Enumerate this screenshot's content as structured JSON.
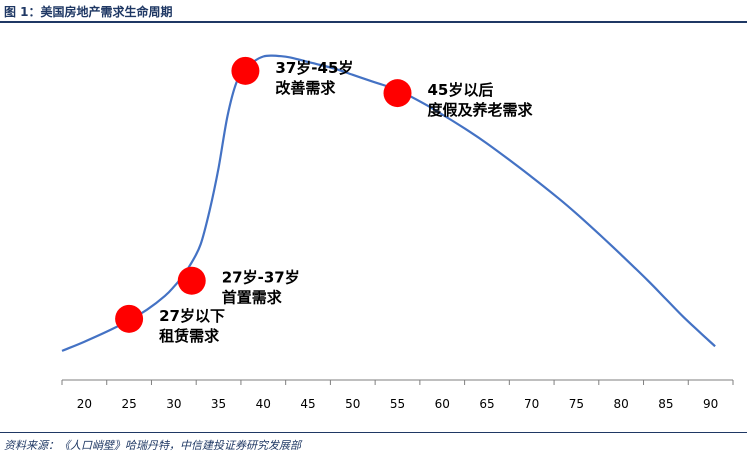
{
  "figure": {
    "title": "图 1：美国房地产需求生命周期",
    "source": "资料来源：《人口峭壁》哈瑞丹特，中信建投证券研究发展部"
  },
  "colors": {
    "curve": "#4472c4",
    "marker": "#ff0000",
    "rule": "#1f3864",
    "text": "#000000"
  },
  "chart_data": {
    "type": "line",
    "title": "",
    "xlabel": "",
    "ylabel": "",
    "xlim": [
      17.5,
      92.5
    ],
    "x_ticks": [
      20,
      25,
      30,
      35,
      40,
      45,
      50,
      55,
      60,
      65,
      70,
      75,
      80,
      85,
      90
    ],
    "ylim": [
      0,
      100
    ],
    "y_axis_shown": false,
    "grid": false,
    "series": [
      {
        "x": [
          17.5,
          20,
          23,
          25,
          27,
          29,
          30,
          31,
          32,
          33,
          34,
          35,
          36,
          37,
          38,
          39,
          40,
          41,
          42,
          43,
          44,
          45,
          46,
          48,
          50,
          52,
          55,
          58,
          60,
          63,
          65,
          68,
          70,
          73,
          75,
          78,
          80,
          83,
          85,
          87,
          89,
          90.5
        ],
        "y": [
          3,
          6,
          10,
          13,
          16.5,
          21,
          24,
          27.5,
          32,
          38,
          49,
          63,
          80,
          91,
          95.5,
          98,
          99.5,
          99.8,
          99.6,
          99.2,
          98.5,
          97.7,
          97,
          95.5,
          93.5,
          91.5,
          88.5,
          84,
          80.5,
          75,
          71,
          64.5,
          60,
          53,
          48,
          40,
          34.5,
          26,
          20,
          14,
          8.5,
          4.5
        ]
      }
    ],
    "points": [
      {
        "x": 25,
        "y": 13.5,
        "label_1": "27岁以下",
        "label_2": "租赁需求"
      },
      {
        "x": 32,
        "y": 26,
        "label_1": "27岁-37岁",
        "label_2": "首置需求"
      },
      {
        "x": 38,
        "y": 94.8,
        "label_1": "37岁-45岁",
        "label_2": "改善需求"
      },
      {
        "x": 55,
        "y": 87.5,
        "label_1": "45岁以后",
        "label_2": "度假及养老需求"
      }
    ]
  }
}
